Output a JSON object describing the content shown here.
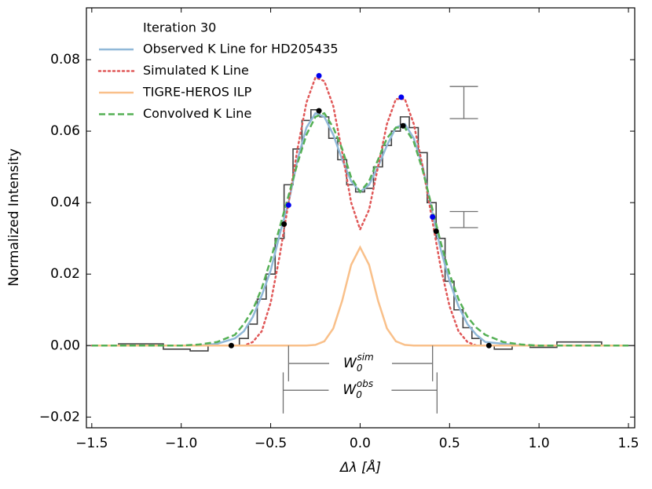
{
  "chart_data": {
    "type": "line",
    "xlabel": "Δλ [Å]",
    "ylabel": "Normalized Intensity",
    "legend_title": "Iteration 30",
    "legend": "upper left",
    "xlim": [
      -1.53,
      1.535
    ],
    "ylim": [
      -0.023,
      0.0945
    ],
    "xticks": [
      {
        "value": -1.5,
        "label": "−1.5"
      },
      {
        "value": -1.0,
        "label": "−1.0"
      },
      {
        "value": -0.5,
        "label": "−0.5"
      },
      {
        "value": 0,
        "label": "0.0"
      },
      0.5,
      {
        "value": 1.0,
        "label": "1.0"
      },
      1.5
    ],
    "yticks": [
      {
        "value": -0.02,
        "label": "−0.02"
      },
      {
        "value": 0,
        "label": "0.00"
      },
      0.02,
      0.04,
      0.06,
      0.08
    ],
    "x": [
      -1.5,
      -1.2,
      -1.0,
      -0.9,
      -0.8,
      -0.7,
      -0.65,
      -0.6,
      -0.55,
      -0.5,
      -0.45,
      -0.4,
      -0.35,
      -0.3,
      -0.25,
      -0.2,
      -0.15,
      -0.1,
      -0.05,
      0,
      0.05,
      0.1,
      0.15,
      0.2,
      0.25,
      0.3,
      0.35,
      0.4,
      0.45,
      0.5,
      0.55,
      0.6,
      0.65,
      0.7,
      0.8,
      0.9,
      1.0,
      1.2,
      1.5
    ],
    "steps": {
      "color": "#404040",
      "values": [
        0,
        0.0005,
        -0.001,
        -0.0015,
        0,
        0,
        0.002,
        0.006,
        0.013,
        0.02,
        0.03,
        0.045,
        0.055,
        0.063,
        0.066,
        0.064,
        0.058,
        0.052,
        0.045,
        0.043,
        0.044,
        0.05,
        0.056,
        0.06,
        0.064,
        0.061,
        0.054,
        0.04,
        0.03,
        0.018,
        0.01,
        0.005,
        0.002,
        0,
        -0.001,
        0,
        -0.0005,
        0.001,
        0
      ]
    },
    "series": [
      {
        "name": "Observed K Line for HD205435",
        "color": "#90b8d8",
        "style": "solid",
        "values": [
          0,
          0,
          0,
          0,
          0.0005,
          0.002,
          0.004,
          0.008,
          0.014,
          0.021,
          0.031,
          0.04,
          0.052,
          0.061,
          0.065,
          0.064,
          0.059,
          0.052,
          0.046,
          0.043,
          0.045,
          0.05,
          0.056,
          0.061,
          0.062,
          0.058,
          0.05,
          0.038,
          0.027,
          0.018,
          0.011,
          0.006,
          0.003,
          0.001,
          0.0005,
          0,
          0,
          0,
          0
        ]
      },
      {
        "name": "Simulated K Line",
        "color": "#e05858",
        "style": "dotted",
        "values": [
          0,
          0,
          0,
          0,
          0,
          0,
          0,
          0.001,
          0.004,
          0.012,
          0.025,
          0.04,
          0.055,
          0.068,
          0.075,
          0.074,
          0.067,
          0.054,
          0.04,
          0.0325,
          0.038,
          0.05,
          0.062,
          0.069,
          0.069,
          0.062,
          0.05,
          0.036,
          0.022,
          0.011,
          0.004,
          0.001,
          0,
          0,
          0,
          0,
          0,
          0,
          0
        ]
      },
      {
        "name": "TIGRE-HEROS ILP",
        "color": "#f9c08a",
        "style": "solid",
        "values": [
          0,
          0,
          0,
          0,
          0,
          0,
          0,
          0,
          0,
          0,
          0,
          0,
          0,
          0,
          0.0002,
          0.0012,
          0.0048,
          0.0126,
          0.0226,
          0.0275,
          0.0226,
          0.0126,
          0.0048,
          0.0012,
          0.0002,
          0,
          0,
          0,
          0,
          0,
          0,
          0,
          0,
          0,
          0,
          0,
          0,
          0,
          0
        ]
      },
      {
        "name": "Convolved K Line",
        "color": "#55b055",
        "style": "dashed",
        "values": [
          0,
          0,
          0,
          0.0003,
          0.001,
          0.003,
          0.006,
          0.01,
          0.016,
          0.024,
          0.033,
          0.042,
          0.051,
          0.059,
          0.064,
          0.065,
          0.061,
          0.055,
          0.047,
          0.043,
          0.046,
          0.052,
          0.058,
          0.061,
          0.061,
          0.057,
          0.049,
          0.039,
          0.029,
          0.02,
          0.013,
          0.008,
          0.005,
          0.003,
          0.001,
          0.0003,
          0,
          0,
          0
        ]
      }
    ],
    "markers": [
      {
        "color": "#0000ee",
        "x": [
          -0.23,
          0.23,
          -0.4,
          0.405
        ],
        "values": [
          0.0755,
          0.0695,
          0.0393,
          0.036
        ]
      },
      {
        "color": "#000000",
        "x": [
          -0.23,
          0.24,
          -0.425,
          0.425,
          -0.72,
          0.72
        ],
        "values": [
          0.0657,
          0.0615,
          0.034,
          0.032,
          0,
          0
        ]
      }
    ],
    "error_bars": {
      "color": "#707070",
      "x": [
        0.58,
        0.58
      ],
      "values": [
        0.068,
        0.03525
      ],
      "errors": [
        0.0045,
        0.00225
      ]
    },
    "widths": [
      {
        "symbol": "W",
        "sub": "0",
        "sup": "sim",
        "x": [
          -0.4,
          0.405
        ],
        "y": -0.005,
        "top": 0,
        "bottom": -0.01
      },
      {
        "symbol": "W",
        "sub": "0",
        "sup": "obs",
        "x": [
          -0.43,
          0.43
        ],
        "y": -0.0125,
        "top": -0.0075,
        "bottom": -0.019
      }
    ]
  }
}
